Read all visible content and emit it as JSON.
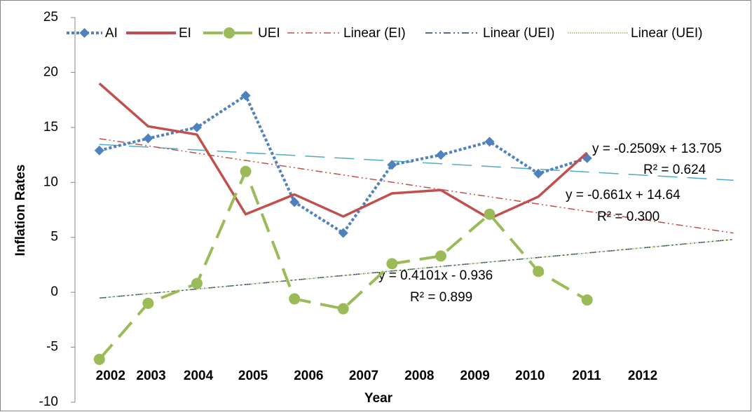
{
  "chart_data": {
    "type": "line",
    "y_title": "Inflation Rates",
    "x_title": "Year",
    "ylim": [
      -10,
      25
    ],
    "yticks": [
      -10,
      -5,
      0,
      5,
      10,
      15,
      20,
      25
    ],
    "xlim": [
      0.5,
      14.05
    ],
    "xticks": [
      {
        "value": 1.23,
        "label": "2002"
      },
      {
        "value": 2.06,
        "label": "2003"
      },
      {
        "value": 3.03,
        "label": "2004"
      },
      {
        "value": 4.15,
        "label": "2005"
      },
      {
        "value": 5.29,
        "label": "2006"
      },
      {
        "value": 6.42,
        "label": "2007"
      },
      {
        "value": 7.56,
        "label": "2008"
      },
      {
        "value": 8.7,
        "label": "2009"
      },
      {
        "value": 9.83,
        "label": "2010"
      },
      {
        "value": 10.99,
        "label": "2011"
      },
      {
        "value": 12.14,
        "label": "2012"
      }
    ],
    "series": [
      {
        "name": "AI",
        "color": "#4f81bd",
        "dash": "dotted",
        "marker": "diamond",
        "values": [
          12.9,
          14.0,
          15.0,
          17.9,
          8.2,
          5.4,
          11.6,
          12.5,
          13.7,
          10.8,
          12.2
        ]
      },
      {
        "name": "EI",
        "color": "#c0504d",
        "dash": "solid",
        "marker": "none",
        "values": [
          19.0,
          15.1,
          14.35,
          7.1,
          8.9,
          6.9,
          9.0,
          9.3,
          6.7,
          8.7,
          12.7
        ]
      },
      {
        "name": "UEI",
        "color": "#9bbb59",
        "dash": "dashed",
        "marker": "circle",
        "values": [
          -6.1,
          -1.0,
          0.8,
          11.0,
          -0.6,
          -1.5,
          2.6,
          3.3,
          7.1,
          1.9,
          -0.7
        ]
      }
    ],
    "trend_xrange": [
      1,
      14
    ],
    "trendlines": [
      {
        "series_index": 0,
        "color": "#4bacc6",
        "dash": "dashed",
        "slope": -0.2509,
        "intercept": 13.705,
        "equation": "y = -0.2509x + 13.705",
        "r2_label": "R² = 0.624"
      },
      {
        "series_index": 1,
        "name": "Linear (EI)",
        "color": "#c0504d",
        "dash": "dashdot",
        "slope": -0.661,
        "intercept": 14.64,
        "equation": "y = -0.661x + 14.64",
        "r2_label": "R² = 0.300"
      },
      {
        "series_index": 2,
        "name": "Linear (UEI)",
        "color": "#1f3864",
        "dash": "dashdot",
        "slope": 0.4101,
        "intercept": -0.936,
        "equation": "y = 0.4101x - 0.936",
        "r2_label": "R² = 0.899"
      },
      {
        "series_index": 2,
        "name": "Linear (UEI)",
        "color": "#9bbb59",
        "dash": "dotted"
      }
    ]
  }
}
